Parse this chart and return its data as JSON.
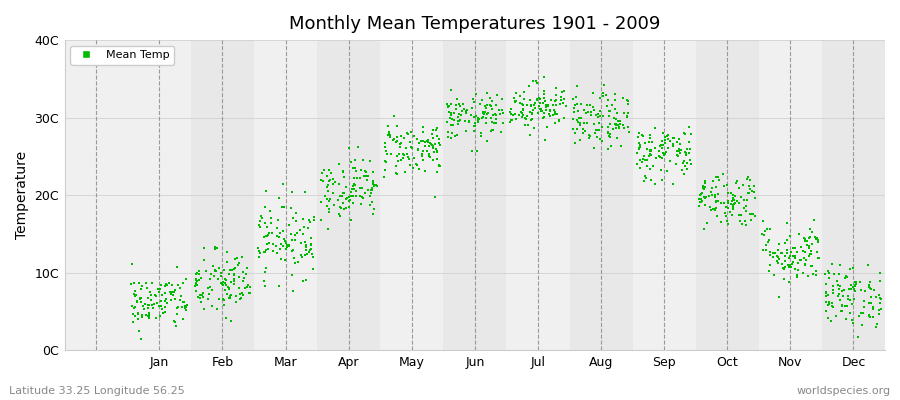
{
  "title": "Monthly Mean Temperatures 1901 - 2009",
  "ylabel": "Temperature",
  "bottom_left_text": "Latitude 33.25 Longitude 56.25",
  "bottom_right_text": "worldspecies.org",
  "dot_color": "#00bb00",
  "background_color": "#ffffff",
  "band_color_odd": "#f0f0f0",
  "band_color_even": "#e8e8e8",
  "ytick_labels": [
    "0C",
    "10C",
    "20C",
    "30C",
    "40C"
  ],
  "ytick_values": [
    0,
    10,
    20,
    30,
    40
  ],
  "months": [
    "Jan",
    "Feb",
    "Mar",
    "Apr",
    "May",
    "Jun",
    "Jul",
    "Aug",
    "Sep",
    "Oct",
    "Nov",
    "Dec"
  ],
  "month_mean_temps": [
    6.2,
    8.5,
    14.5,
    21.0,
    26.0,
    30.0,
    31.5,
    29.5,
    25.5,
    19.5,
    12.5,
    7.0
  ],
  "month_std_temps": [
    1.8,
    2.2,
    2.5,
    2.0,
    1.8,
    1.5,
    1.5,
    1.8,
    1.8,
    1.8,
    2.0,
    2.0
  ],
  "n_points": 109,
  "seed": 42,
  "dot_size": 3,
  "xlim_left": -0.5,
  "xlim_right": 12.5
}
